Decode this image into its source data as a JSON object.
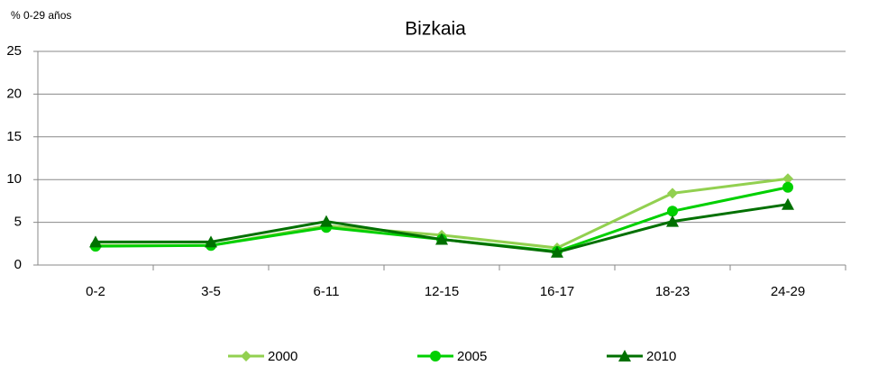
{
  "chart_data": {
    "type": "line",
    "title": "Bizkaia",
    "y_label": "% 0-29 años",
    "categories": [
      "0-2",
      "3-5",
      "6-11",
      "12-15",
      "16-17",
      "18-23",
      "24-29"
    ],
    "series": [
      {
        "name": "2000",
        "color": "#92d050",
        "marker": "diamond",
        "values": [
          2.3,
          2.3,
          4.6,
          3.5,
          2.0,
          8.4,
          10.1
        ]
      },
      {
        "name": "2005",
        "color": "#00d000",
        "marker": "circle",
        "values": [
          2.2,
          2.3,
          4.4,
          3.0,
          1.6,
          6.3,
          9.1
        ]
      },
      {
        "name": "2010",
        "color": "#007000",
        "marker": "triangle",
        "values": [
          2.7,
          2.7,
          5.1,
          3.0,
          1.5,
          5.1,
          7.1
        ]
      }
    ],
    "ylim": [
      0,
      25
    ],
    "yticks": [
      0,
      5,
      10,
      15,
      20,
      25
    ],
    "grid": true,
    "legend": "bottom"
  }
}
